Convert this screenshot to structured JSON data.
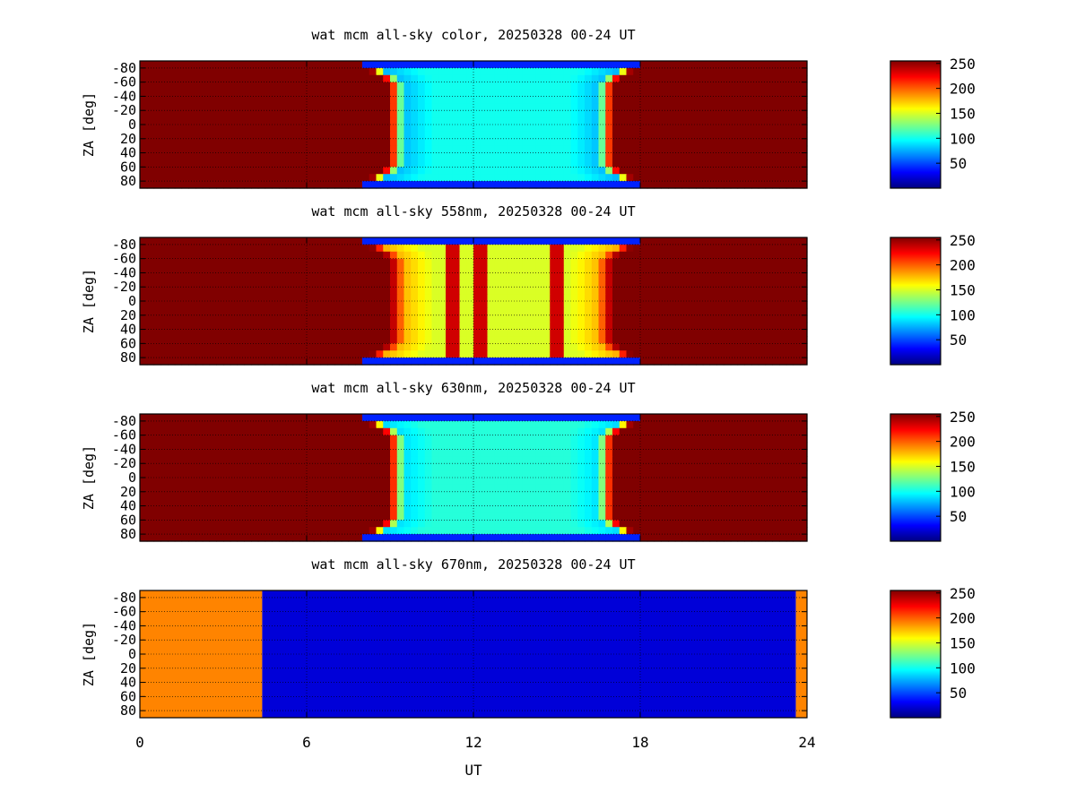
{
  "chart_data": {
    "type": "heatmap",
    "x_axis": {
      "label": "UT",
      "range": [
        0,
        24
      ],
      "ticks": [
        0,
        6,
        12,
        18,
        24
      ]
    },
    "y_axis": {
      "label": "ZA [deg]",
      "range": [
        -90,
        90
      ],
      "ticks": [
        -80,
        -60,
        -40,
        -20,
        0,
        20,
        40,
        60,
        80
      ],
      "tick_labels": [
        "-80",
        "-60",
        "-40",
        "-20",
        "0",
        "20",
        "40",
        "60",
        "80"
      ]
    },
    "colorbar": {
      "colormap": "jet",
      "range": [
        0,
        255
      ],
      "ticks": [
        50,
        100,
        150,
        200,
        250
      ]
    },
    "grid": true,
    "panels": [
      {
        "title": "wat mcm all-sky color, 20250328 00-24 UT",
        "pattern": "night_window",
        "saturated_value": 255,
        "night_start_ut": 9.0,
        "night_end_ut": 17.0,
        "center_value": 100,
        "edge_value": 70,
        "stripe_ut": []
      },
      {
        "title": "wat mcm all-sky 558nm, 20250328 00-24 UT",
        "pattern": "night_window",
        "saturated_value": 255,
        "night_start_ut": 9.0,
        "night_end_ut": 17.0,
        "center_value": 150,
        "edge_value": 190,
        "stripe_ut": [
          11.3,
          12.3,
          15.0
        ]
      },
      {
        "title": "wat mcm all-sky 630nm, 20250328 00-24 UT",
        "pattern": "night_window",
        "saturated_value": 255,
        "night_start_ut": 9.0,
        "night_end_ut": 17.0,
        "center_value": 105,
        "edge_value": 80,
        "stripe_ut": []
      },
      {
        "title": "wat mcm all-sky 670nm, 20250328 00-24 UT",
        "pattern": "blocks",
        "blocks": [
          {
            "from_ut": 0.0,
            "to_ut": 4.4,
            "value": 190
          },
          {
            "from_ut": 4.4,
            "to_ut": 23.6,
            "value": 22
          },
          {
            "from_ut": 23.6,
            "to_ut": 24.0,
            "value": 190
          }
        ]
      }
    ]
  }
}
